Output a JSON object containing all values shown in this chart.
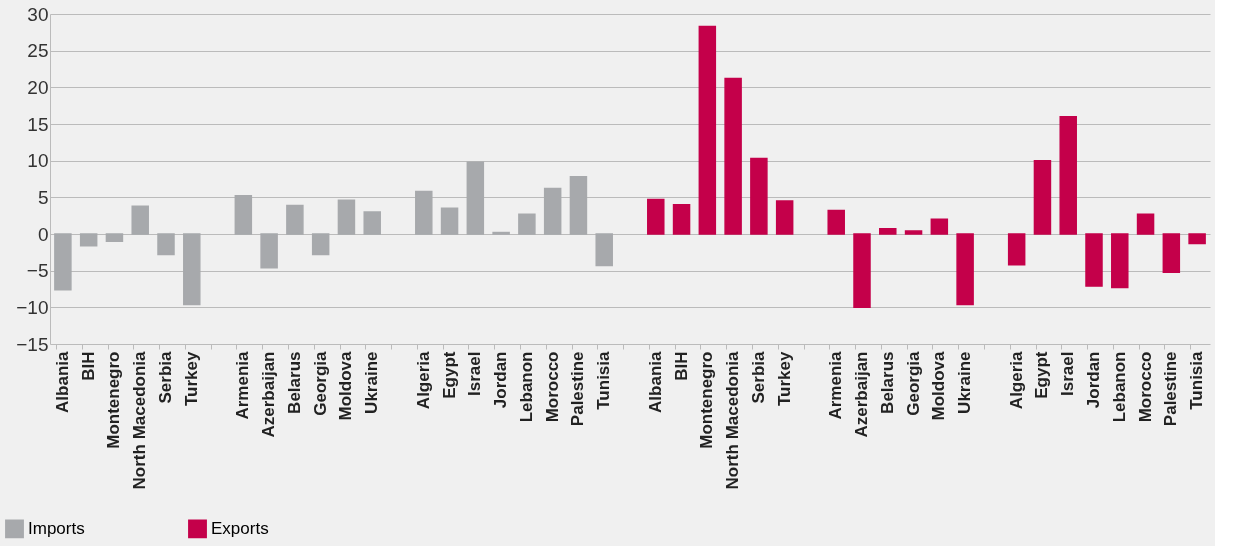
{
  "chart_data": {
    "type": "bar",
    "categories": [
      "Albania",
      "BIH",
      "Montenegro",
      "North Macedonia",
      "Serbia",
      "Turkey",
      null,
      "Armenia",
      "Azerbaijan",
      "Belarus",
      "Georgia",
      "Moldova",
      "Ukraine",
      null,
      "Algeria",
      "Egypt",
      "Israel",
      "Jordan",
      "Lebanon",
      "Morocco",
      "Palestine",
      "Tunisia",
      null,
      "Albania",
      "BIH",
      "Montenegro",
      "North Macedonia",
      "Serbia",
      "Turkey",
      null,
      "Armenia",
      "Azerbaijan",
      "Belarus",
      "Georgia",
      "Moldova",
      "Ukraine",
      null,
      "Algeria",
      "Egypt",
      "Israel",
      "Jordan",
      "Lebanon",
      "Morocco",
      "Palestine",
      "Tunisia"
    ],
    "series": [
      {
        "name": "Imports",
        "color": "#a7a9ac",
        "values": [
          -7.6,
          -1.6,
          -1.0,
          3.8,
          -2.8,
          -9.6,
          null,
          5.2,
          -4.6,
          3.9,
          -2.8,
          4.6,
          3.0,
          null,
          5.8,
          3.5,
          9.8,
          0.2,
          2.7,
          6.2,
          7.8,
          -4.3,
          null,
          null,
          null,
          null,
          null,
          null,
          null,
          null,
          null,
          null,
          null,
          null,
          null,
          null,
          null,
          null,
          null,
          null,
          null,
          null,
          null,
          null,
          null
        ]
      },
      {
        "name": "Exports",
        "color": "#c4004a",
        "values": [
          null,
          null,
          null,
          null,
          null,
          null,
          null,
          null,
          null,
          null,
          null,
          null,
          null,
          null,
          null,
          null,
          null,
          null,
          null,
          null,
          null,
          null,
          null,
          4.7,
          4.0,
          28.3,
          21.2,
          10.3,
          4.5,
          null,
          3.2,
          -10.0,
          0.7,
          0.4,
          2.0,
          -9.6,
          null,
          -4.2,
          10.0,
          16.0,
          -7.1,
          -7.3,
          2.7,
          -5.2,
          -1.3
        ]
      }
    ],
    "ylim": [
      -15,
      30
    ],
    "yticks": [
      -15,
      -10,
      -5,
      0,
      5,
      10,
      15,
      20,
      25,
      30
    ],
    "grid": "y",
    "legend": "bottom left"
  }
}
